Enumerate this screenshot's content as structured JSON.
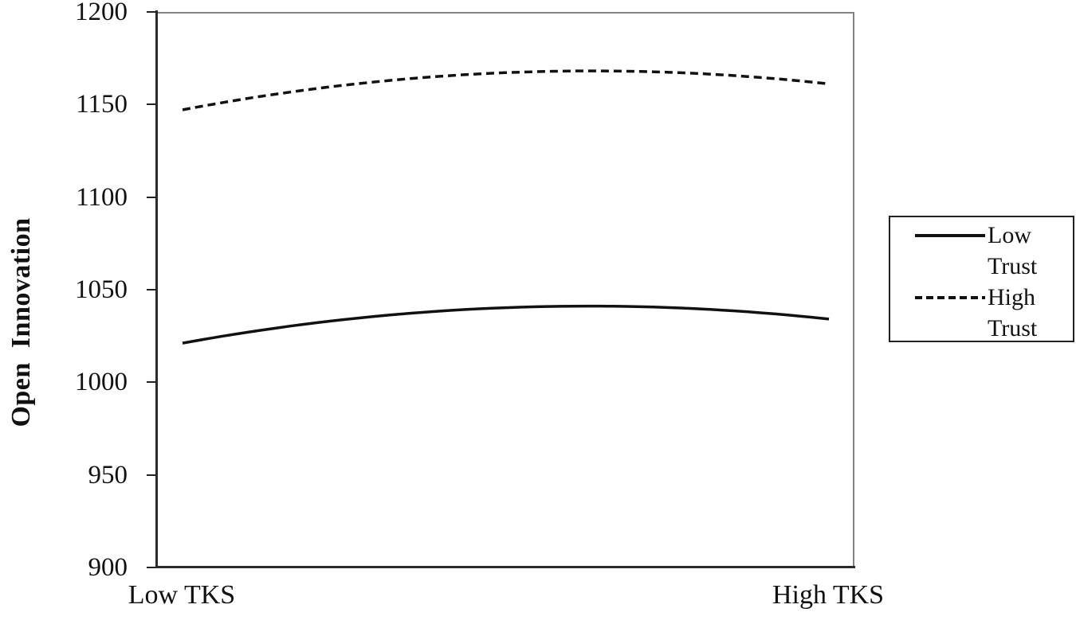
{
  "chart_data": {
    "type": "line",
    "title": "",
    "xlabel": "",
    "ylabel": "Open  Innovation",
    "x_categories": [
      "Low TKS",
      "High TKS"
    ],
    "y_ticks": [
      1200,
      1150,
      1100,
      1050,
      1000,
      950,
      900
    ],
    "ylim": [
      900,
      1200
    ],
    "grid": false,
    "markers": false,
    "legend_position": "right-outside",
    "series": [
      {
        "name": "Low Trust",
        "line_style": "solid",
        "color": "#111111",
        "points": [
          {
            "x": 0.0,
            "y": 1022
          },
          {
            "x": 0.63,
            "y": 1042
          },
          {
            "x": 1.0,
            "y": 1035
          }
        ]
      },
      {
        "name": "High Trust",
        "line_style": "dashed",
        "color": "#111111",
        "points": [
          {
            "x": 0.0,
            "y": 1148
          },
          {
            "x": 0.63,
            "y": 1169
          },
          {
            "x": 1.0,
            "y": 1162
          }
        ]
      }
    ]
  },
  "colors": {
    "background": "#ffffff",
    "line": "#111111",
    "axis_dark": "#2a2a2a",
    "plot_border": "#828282",
    "legend_border": "#222222"
  }
}
